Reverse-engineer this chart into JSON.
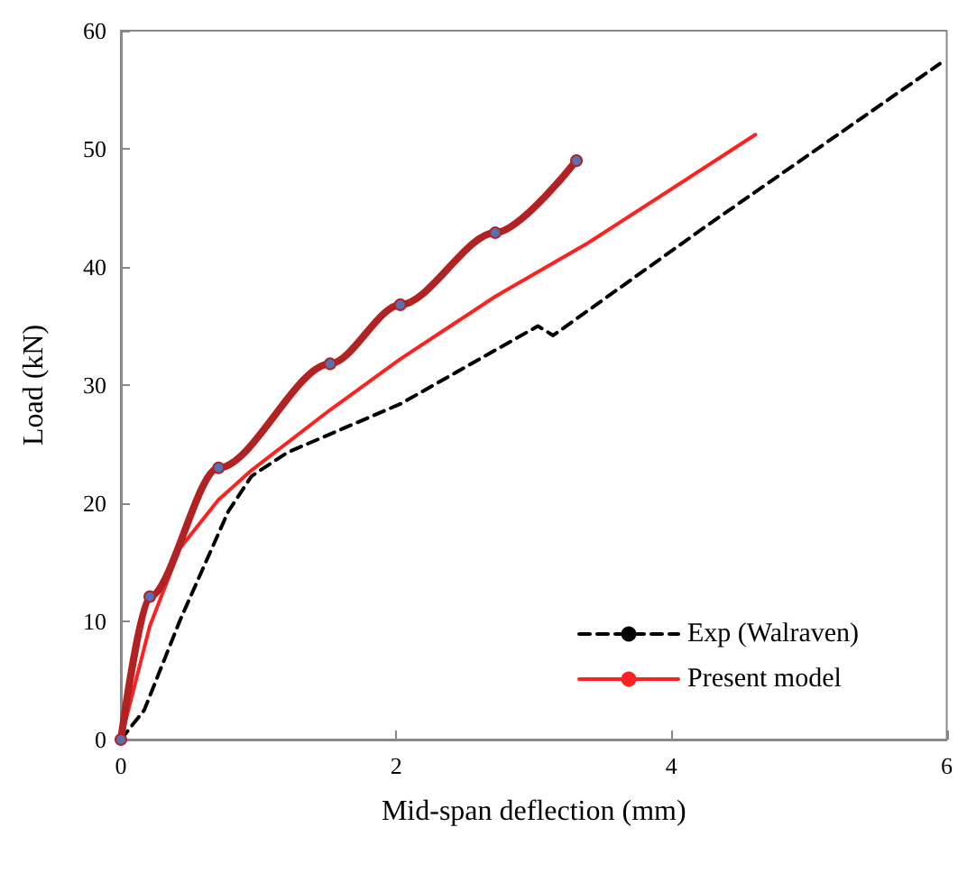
{
  "chart_data": {
    "type": "line",
    "xlabel": "Mid-span deflection (mm)",
    "ylabel": "Load (kN)",
    "xlim": [
      0,
      6
    ],
    "xticks": [
      0,
      2,
      4,
      6
    ],
    "ylim": [
      0,
      60
    ],
    "yticks": [
      0,
      10,
      20,
      30,
      40,
      50,
      60
    ],
    "grid": false,
    "legend": "bottom right",
    "series": [
      {
        "name": "Exp (Walraven)",
        "color": "#000000",
        "line_style": "dashed",
        "marker": "none",
        "x": [
          0,
          0.17,
          0.43,
          0.78,
          0.95,
          1.21,
          2.03,
          3.03,
          3.14,
          4.27,
          5.95
        ],
        "values": [
          0,
          2.5,
          10.1,
          19.3,
          22.3,
          24.3,
          28.4,
          35.0,
          34.2,
          43.6,
          57.2
        ]
      },
      {
        "name": "Present model",
        "color": "#ff2020",
        "line_style": "solid",
        "marker": "none",
        "x": [
          0,
          0.21,
          0.43,
          0.71,
          0.95,
          1.52,
          2.03,
          2.72,
          3.39,
          4.61
        ],
        "values": [
          0,
          9.6,
          16.2,
          20.3,
          22.8,
          27.9,
          32.2,
          37.5,
          42.0,
          51.2
        ]
      },
      {
        "color": "#b22222",
        "line_style": "solid",
        "marker": "circle",
        "x": [
          0,
          0.21,
          0.71,
          1.52,
          2.03,
          2.72,
          3.31
        ],
        "values": [
          0,
          12.1,
          23.0,
          31.8,
          36.8,
          42.9,
          49.0
        ]
      }
    ]
  }
}
